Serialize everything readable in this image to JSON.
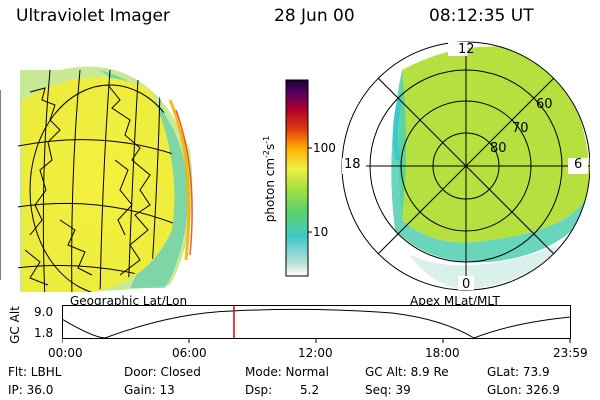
{
  "header": {
    "title": "Ultraviolet Imager",
    "date": "28 Jun 00",
    "time": "08:12:35 UT"
  },
  "left_panel": {
    "caption": "Geographic Lat/Lon"
  },
  "right_panel": {
    "caption": "Apex MLat/MLT",
    "mlt_labels": [
      "12",
      "18",
      "6",
      "0"
    ],
    "lat_labels": [
      "60",
      "70",
      "80"
    ]
  },
  "colorbar": {
    "ticks": [
      "100",
      "10"
    ],
    "unit_main": "photon cm",
    "unit_exp1": "-2",
    "unit_mid": "s",
    "unit_exp2": "-1",
    "colors": [
      "#ffffff",
      "#b8dfd6",
      "#3ec8c8",
      "#5ad26a",
      "#a8e040",
      "#f0f040",
      "#ffb000",
      "#e03a10",
      "#b0002a",
      "#5a0060",
      "#1a0030"
    ]
  },
  "timeline": {
    "ylabel_gc": "GC",
    "ylabel_alt": "Alt",
    "y_ticks": [
      "9.0",
      "1.8"
    ],
    "x_ticks": [
      "00:00",
      "06:00",
      "12:00",
      "18:00",
      "23:59"
    ],
    "current_time_marker": "08:12:35",
    "marker_color": "#dd0000"
  },
  "info": {
    "flt": "Flt: LBHL",
    "ip": "IP: 36.0",
    "door": "Door: Closed",
    "gain": "Gain: 13",
    "mode": "Mode: Normal",
    "dsp_label": "Dsp:",
    "dsp_value": "5.2",
    "gc_alt": "GC Alt: 8.9 Re",
    "seq": "Seq: 39",
    "glat": "GLat: 73.9",
    "glon": "GLon: 326.9"
  }
}
